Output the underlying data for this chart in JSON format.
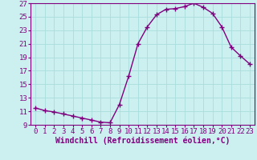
{
  "x": [
    0,
    1,
    2,
    3,
    4,
    5,
    6,
    7,
    8,
    9,
    10,
    11,
    12,
    13,
    14,
    15,
    16,
    17,
    18,
    19,
    20,
    21,
    22,
    23
  ],
  "y": [
    11.5,
    11.1,
    10.9,
    10.6,
    10.3,
    10.0,
    9.7,
    9.4,
    9.3,
    12.0,
    16.2,
    21.0,
    23.5,
    25.3,
    26.1,
    26.2,
    26.5,
    27.0,
    26.4,
    25.5,
    23.5,
    20.5,
    19.2,
    18.0
  ],
  "line_color": "#800080",
  "marker": "+",
  "marker_size": 4,
  "background_color": "#ccf0f0",
  "grid_color": "#aadddd",
  "xlabel": "Windchill (Refroidissement éolien,°C)",
  "xlim": [
    -0.5,
    23.5
  ],
  "ylim": [
    9,
    27
  ],
  "yticks": [
    9,
    11,
    13,
    15,
    17,
    19,
    21,
    23,
    25,
    27
  ],
  "xticks": [
    0,
    1,
    2,
    3,
    4,
    5,
    6,
    7,
    8,
    9,
    10,
    11,
    12,
    13,
    14,
    15,
    16,
    17,
    18,
    19,
    20,
    21,
    22,
    23
  ],
  "xlabel_color": "#800080",
  "tick_color": "#800080",
  "axis_color": "#800080",
  "xlabel_fontsize": 7,
  "tick_fontsize": 6.5
}
